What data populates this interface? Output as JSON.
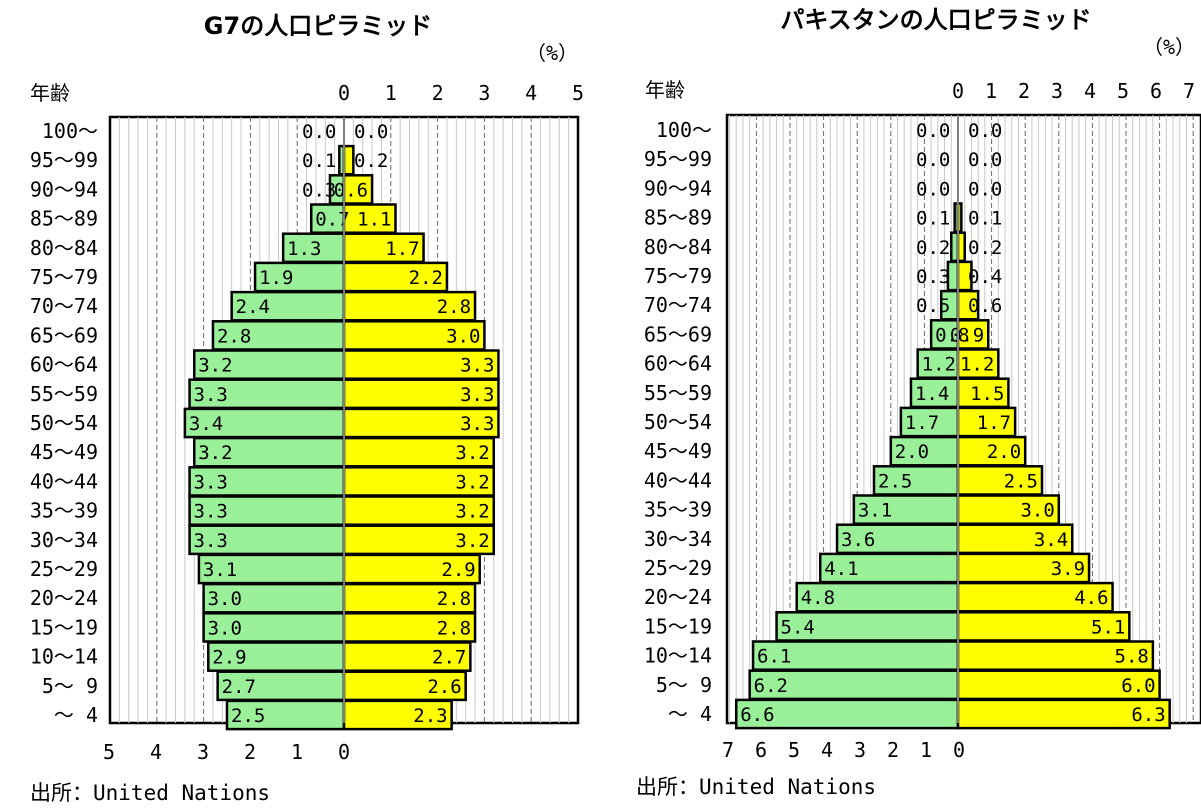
{
  "colors": {
    "male": "#99f099",
    "female": "#ffff00"
  },
  "chart_data": [
    {
      "type": "bar",
      "orientation": "population-pyramid",
      "title": "G7の人口ピラミッド",
      "ylabel": "年齢",
      "unit": "（%）",
      "source": "出所：United Nations",
      "right_ticks": [
        "0",
        "1",
        "2",
        "3",
        "4",
        "5"
      ],
      "left_ticks": [
        "5",
        "4",
        "3",
        "2",
        "1",
        "0"
      ],
      "xlim": [
        -5,
        5
      ],
      "series": [
        {
          "name": "male",
          "side": "left",
          "values": [
            0.0,
            0.1,
            0.3,
            0.7,
            1.3,
            1.9,
            2.4,
            2.8,
            3.2,
            3.3,
            3.4,
            3.2,
            3.3,
            3.3,
            3.3,
            3.1,
            3.0,
            3.0,
            2.9,
            2.7,
            2.5
          ],
          "labels": [
            "0.0",
            "0.1",
            "0.3",
            "0.7",
            "1.3",
            "1.9",
            "2.4",
            "2.8",
            "3.2",
            "3.3",
            "3.4",
            "3.2",
            "3.3",
            "3.3",
            "3.3",
            "3.1",
            "3.0",
            "3.0",
            "2.9",
            "2.7",
            "2.5"
          ]
        },
        {
          "name": "female",
          "side": "right",
          "values": [
            0.0,
            0.2,
            0.6,
            1.1,
            1.7,
            2.2,
            2.8,
            3.0,
            3.3,
            3.3,
            3.3,
            3.2,
            3.2,
            3.2,
            3.2,
            2.9,
            2.8,
            2.8,
            2.7,
            2.6,
            2.3
          ],
          "labels": [
            "0.0",
            "0.2",
            "0.6",
            "1.1",
            "1.7",
            "2.2",
            "2.8",
            "3.0",
            "3.3",
            "3.3",
            "3.3",
            "3.2",
            "3.2",
            "3.2",
            "3.2",
            "2.9",
            "2.8",
            "2.8",
            "2.7",
            "2.6",
            "2.3"
          ]
        }
      ],
      "categories": [
        "100～",
        "95～99",
        "90～94",
        "85～89",
        "80～84",
        "75～79",
        "70～74",
        "65～69",
        "60～64",
        "55～59",
        "50～54",
        "45～49",
        "40～44",
        "35～39",
        "30～34",
        "25～29",
        "20～24",
        "15～19",
        "10～14",
        "5～ 9",
        "～ 4"
      ]
    },
    {
      "type": "bar",
      "orientation": "population-pyramid",
      "title": "パキスタンの人口ピラミッド",
      "ylabel": "年齢",
      "unit": "（%）",
      "source": "出所：United Nations",
      "right_ticks": [
        "0",
        "1",
        "2",
        "3",
        "4",
        "5",
        "6",
        "7"
      ],
      "left_ticks": [
        "7",
        "6",
        "5",
        "4",
        "3",
        "2",
        "1",
        "0"
      ],
      "xlim": [
        -7,
        7
      ],
      "series": [
        {
          "name": "male",
          "side": "left",
          "values": [
            0.0,
            0.0,
            0.0,
            0.1,
            0.2,
            0.3,
            0.5,
            0.8,
            1.2,
            1.4,
            1.7,
            2.0,
            2.5,
            3.1,
            3.6,
            4.1,
            4.8,
            5.4,
            6.1,
            6.2,
            6.6
          ],
          "labels": [
            "0.0",
            "0.0",
            "0.0",
            "0.1",
            "0.2",
            "0.3",
            "0.5",
            "0.8",
            "1.2",
            "1.4",
            "1.7",
            "2.0",
            "2.5",
            "3.1",
            "3.6",
            "4.1",
            "4.8",
            "5.4",
            "6.1",
            "6.2",
            "6.6"
          ]
        },
        {
          "name": "female",
          "side": "right",
          "values": [
            0.0,
            0.0,
            0.0,
            0.1,
            0.2,
            0.4,
            0.6,
            0.9,
            1.2,
            1.5,
            1.7,
            2.0,
            2.5,
            3.0,
            3.4,
            3.9,
            4.6,
            5.1,
            5.8,
            6.0,
            6.3
          ],
          "labels": [
            "0.0",
            "0.0",
            "0.0",
            "0.1",
            "0.2",
            "0.4",
            "0.6",
            "0.9",
            "1.2",
            "1.5",
            "1.7",
            "2.0",
            "2.5",
            "3.0",
            "3.4",
            "3.9",
            "4.6",
            "5.1",
            "5.8",
            "6.0",
            "6.3"
          ]
        }
      ],
      "categories": [
        "100～",
        "95～99",
        "90～94",
        "85～89",
        "80～84",
        "75～79",
        "70～74",
        "65～69",
        "60～64",
        "55～59",
        "50～54",
        "45～49",
        "40～44",
        "35～39",
        "30～34",
        "25～29",
        "20～24",
        "15～19",
        "10～14",
        "5～ 9",
        "～ 4"
      ]
    }
  ]
}
